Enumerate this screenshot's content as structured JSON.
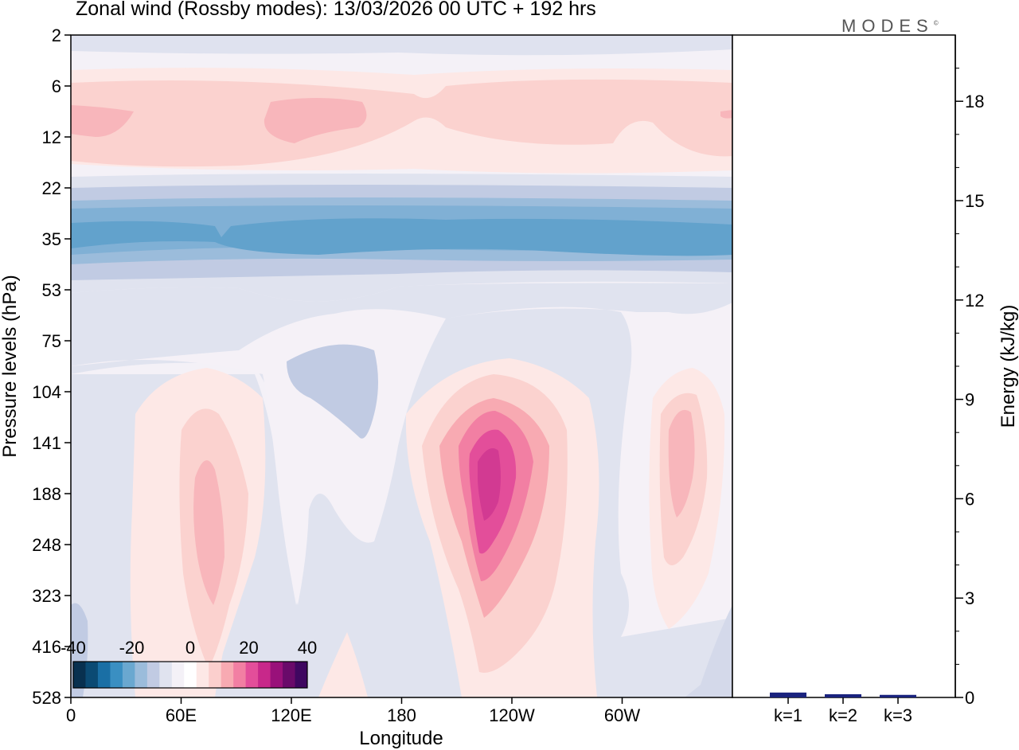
{
  "title": "Zonal wind (Rossby modes):  13/03/2026  00 UTC  + 192 hrs",
  "brand": {
    "name": "MODES",
    "mark": "©"
  },
  "chart_data": [
    {
      "type": "heatmap",
      "title": "Zonal wind (Rossby modes):  13/03/2026  00 UTC  + 192 hrs",
      "xlabel": "Longitude",
      "ylabel": "Pressure levels (hPa)",
      "x_tick_labels": [
        "0",
        "60E",
        "120E",
        "180",
        "120W",
        "60W"
      ],
      "y_tick_labels": [
        "2",
        "6",
        "12",
        "22",
        "35",
        "53",
        "75",
        "104",
        "141",
        "188",
        "248",
        "323",
        "416",
        "528"
      ],
      "colorbar": {
        "range": [
          -40,
          40
        ],
        "step": 5,
        "tick_labels": [
          "-40",
          "-20",
          "0",
          "20",
          "40"
        ],
        "colors": [
          "#08304f",
          "#0b4a73",
          "#1a6fa5",
          "#3a8fc2",
          "#6aa8d0",
          "#9bbcdb",
          "#c1cbe3",
          "#e0e3ef",
          "#f4f1f7",
          "#ffffff",
          "#fde8e6",
          "#fbcfcd",
          "#f8aab2",
          "#f27fa3",
          "#e34e9a",
          "#c8288a",
          "#99117a",
          "#6a0a6a",
          "#3f0760"
        ]
      },
      "description_features": [
        {
          "feature": "easterly jet (negative)",
          "level_hPa": 35,
          "approx_value": -20
        },
        {
          "feature": "westerly maximum (positive)",
          "longitude": "120W",
          "level_hPa": 160,
          "approx_value": 20
        },
        {
          "feature": "westerly maximum (positive)",
          "longitude": "75E",
          "level_hPa": 200,
          "approx_value": 10
        },
        {
          "feature": "westerly band (positive)",
          "level_hPa": 10,
          "approx_value": 10
        }
      ]
    },
    {
      "type": "bar",
      "categories": [
        "k=1",
        "k=2",
        "k=3"
      ],
      "values": [
        0.1,
        0.05,
        0.03
      ],
      "ylabel": "Energy (kJ/kg)",
      "ylim": [
        0,
        20
      ],
      "y_tick_labels": [
        "0",
        "3",
        "6",
        "9",
        "12",
        "15",
        "18"
      ],
      "bar_colors": [
        "#1a237e",
        "#1a237e",
        "#1a237e"
      ]
    }
  ]
}
